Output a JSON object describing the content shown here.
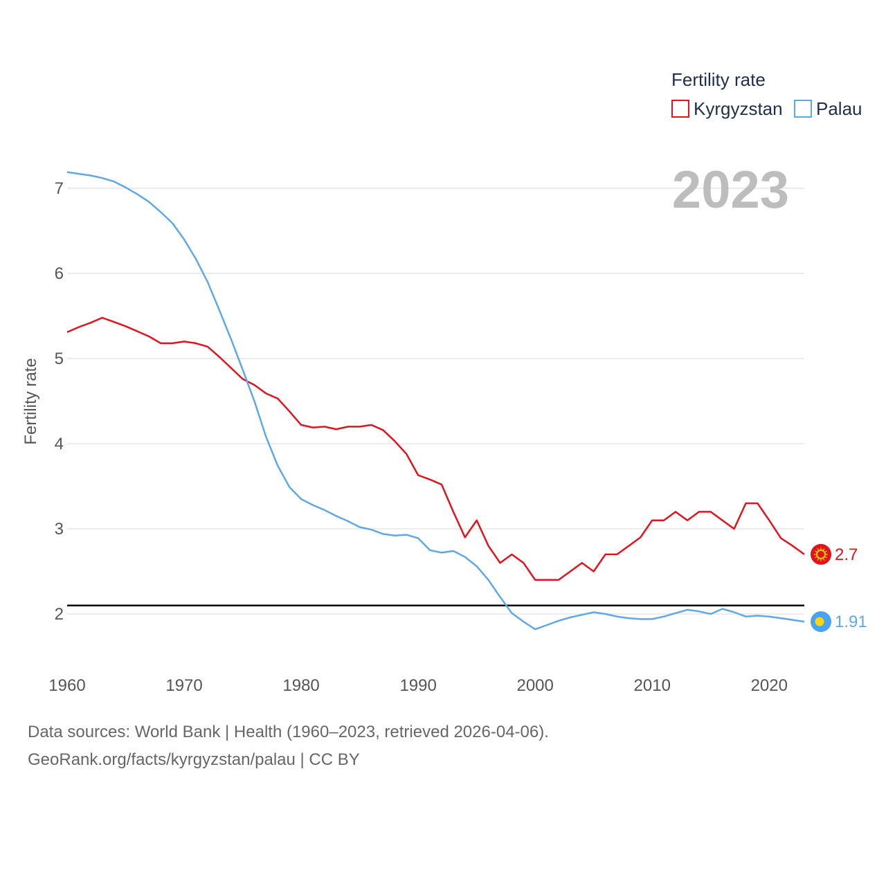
{
  "chart_data": {
    "type": "line",
    "title": "",
    "ylabel": "Fertility rate",
    "xlabel": "",
    "xlim": [
      1960,
      2023
    ],
    "ylim": [
      1.4,
      7.4
    ],
    "yticks": [
      2,
      3,
      4,
      5,
      6,
      7
    ],
    "xticks": [
      1960,
      1970,
      1980,
      1990,
      2000,
      2010,
      2020
    ],
    "grid": true,
    "reference_line": 2.1,
    "year_label": "2023",
    "legend": {
      "title": "Fertility rate",
      "position": "top-right"
    },
    "series": [
      {
        "name": "Kyrgyzstan",
        "color": "#e3121c",
        "end_label": "2.7",
        "x": [
          1960,
          1961,
          1962,
          1963,
          1964,
          1965,
          1966,
          1967,
          1968,
          1969,
          1970,
          1971,
          1972,
          1973,
          1974,
          1975,
          1976,
          1977,
          1978,
          1979,
          1980,
          1981,
          1982,
          1983,
          1984,
          1985,
          1986,
          1987,
          1988,
          1989,
          1990,
          1991,
          1992,
          1993,
          1994,
          1995,
          1996,
          1997,
          1998,
          1999,
          2000,
          2001,
          2002,
          2003,
          2004,
          2005,
          2006,
          2007,
          2008,
          2009,
          2010,
          2011,
          2012,
          2013,
          2014,
          2015,
          2016,
          2017,
          2018,
          2019,
          2020,
          2021,
          2022,
          2023
        ],
        "values": [
          5.31,
          5.37,
          5.42,
          5.48,
          5.43,
          5.38,
          5.32,
          5.26,
          5.18,
          5.18,
          5.2,
          5.18,
          5.14,
          5.02,
          4.89,
          4.76,
          4.69,
          4.59,
          4.53,
          4.38,
          4.22,
          4.19,
          4.2,
          4.17,
          4.2,
          4.2,
          4.22,
          4.16,
          4.03,
          3.88,
          3.63,
          3.58,
          3.52,
          3.2,
          2.9,
          3.1,
          2.8,
          2.6,
          2.7,
          2.6,
          2.4,
          2.4,
          2.4,
          2.5,
          2.6,
          2.5,
          2.7,
          2.7,
          2.8,
          2.9,
          3.1,
          3.1,
          3.2,
          3.1,
          3.2,
          3.2,
          3.1,
          3.0,
          3.3,
          3.3,
          3.1,
          2.89,
          2.8,
          2.7
        ]
      },
      {
        "name": "Palau",
        "color": "#5fa8e8",
        "end_label": "1.91",
        "x": [
          1960,
          1961,
          1962,
          1963,
          1964,
          1965,
          1966,
          1967,
          1968,
          1969,
          1970,
          1971,
          1972,
          1973,
          1974,
          1975,
          1976,
          1977,
          1978,
          1979,
          1980,
          1981,
          1982,
          1983,
          1984,
          1985,
          1986,
          1987,
          1988,
          1989,
          1990,
          1991,
          1992,
          1993,
          1994,
          1995,
          1996,
          1997,
          1998,
          1999,
          2000,
          2001,
          2002,
          2003,
          2004,
          2005,
          2006,
          2007,
          2008,
          2009,
          2010,
          2011,
          2012,
          2013,
          2014,
          2015,
          2016,
          2017,
          2018,
          2019,
          2020,
          2021,
          2022,
          2023
        ],
        "values": [
          7.19,
          7.17,
          7.15,
          7.12,
          7.08,
          7.01,
          6.93,
          6.84,
          6.72,
          6.59,
          6.4,
          6.17,
          5.9,
          5.57,
          5.23,
          4.87,
          4.5,
          4.08,
          3.74,
          3.49,
          3.35,
          3.28,
          3.22,
          3.15,
          3.09,
          3.02,
          2.99,
          2.94,
          2.92,
          2.93,
          2.89,
          2.75,
          2.72,
          2.74,
          2.67,
          2.56,
          2.4,
          2.2,
          2.01,
          1.91,
          1.82,
          1.87,
          1.92,
          1.96,
          1.99,
          2.02,
          2.0,
          1.97,
          1.95,
          1.94,
          1.94,
          1.97,
          2.01,
          2.05,
          2.03,
          2.0,
          2.06,
          2.02,
          1.97,
          1.98,
          1.97,
          1.95,
          1.93,
          1.91
        ]
      }
    ]
  },
  "footer": {
    "line1": "Data sources: World Bank | Health (1960–2023, retrieved 2026-04-06).",
    "line2": "GeoRank.org/facts/kyrgyzstan/palau | CC BY"
  }
}
